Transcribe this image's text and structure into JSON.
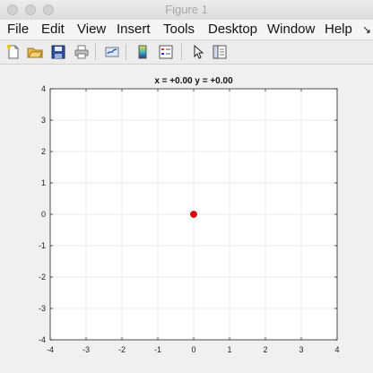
{
  "window": {
    "title": "Figure 1"
  },
  "menu": {
    "items": [
      {
        "label": "File"
      },
      {
        "label": "Edit"
      },
      {
        "label": "View"
      },
      {
        "label": "Insert"
      },
      {
        "label": "Tools"
      },
      {
        "label": "Desktop"
      },
      {
        "label": "Window"
      },
      {
        "label": "Help"
      }
    ],
    "overflow": "↘"
  },
  "toolbar": {
    "icons": [
      "new-figure-icon",
      "open-file-icon",
      "save-icon",
      "print-icon",
      "link-plot-icon",
      "colorbar-icon",
      "legend-icon",
      "pointer-icon",
      "property-editor-icon"
    ]
  },
  "chart_data": {
    "type": "scatter",
    "title": "x = +0.00 y = +0.00",
    "xlim": [
      -4,
      4
    ],
    "ylim": [
      -4,
      4
    ],
    "xticks": [
      -4,
      -3,
      -2,
      -1,
      0,
      1,
      2,
      3,
      4
    ],
    "yticks": [
      -4,
      -3,
      -2,
      -1,
      0,
      1,
      2,
      3,
      4
    ],
    "grid": true,
    "points": [
      {
        "x": 0,
        "y": 0,
        "color": "#e00000"
      }
    ]
  }
}
